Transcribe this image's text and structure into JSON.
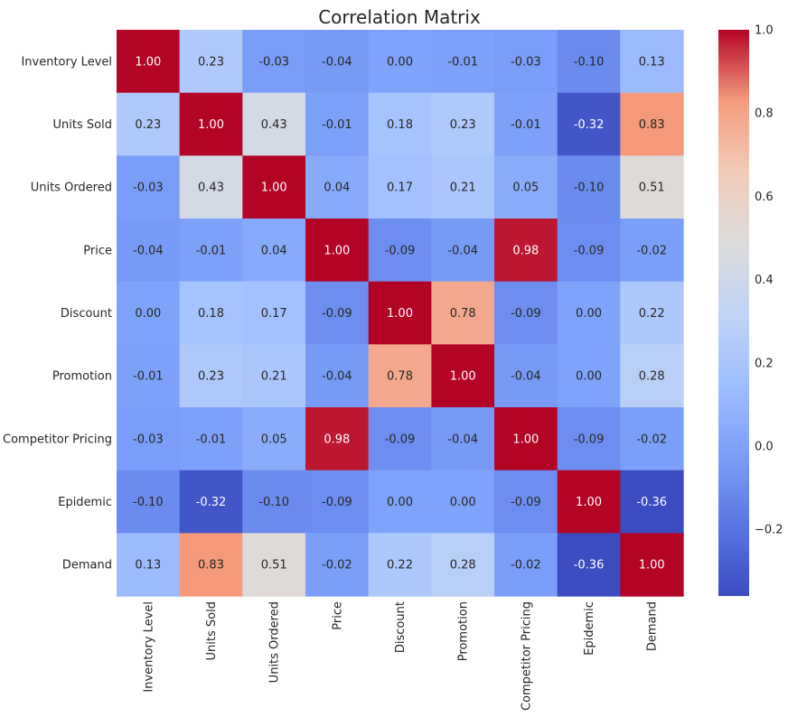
{
  "chart_data": {
    "type": "heatmap",
    "title": "Correlation Matrix",
    "xlabel": "",
    "ylabel": "",
    "colormap": "coolwarm",
    "value_format": "2 decimals",
    "color_range": [
      -0.36,
      1.0
    ],
    "rows": [
      "Inventory Level",
      "Units Sold",
      "Units Ordered",
      "Price",
      "Discount",
      "Promotion",
      "Competitor Pricing",
      "Epidemic",
      "Demand"
    ],
    "columns": [
      "Inventory Level",
      "Units Sold",
      "Units Ordered",
      "Price",
      "Discount",
      "Promotion",
      "Competitor Pricing",
      "Epidemic",
      "Demand"
    ],
    "values": [
      [
        1.0,
        0.23,
        -0.03,
        -0.04,
        -0.0,
        -0.01,
        -0.03,
        -0.1,
        0.13
      ],
      [
        0.23,
        1.0,
        0.43,
        -0.01,
        0.18,
        0.23,
        -0.01,
        -0.32,
        0.83
      ],
      [
        -0.03,
        0.43,
        1.0,
        0.04,
        0.17,
        0.21,
        0.05,
        -0.1,
        0.51
      ],
      [
        -0.04,
        -0.01,
        0.04,
        1.0,
        -0.09,
        -0.04,
        0.98,
        -0.09,
        -0.02
      ],
      [
        -0.0,
        0.18,
        0.17,
        -0.09,
        1.0,
        0.78,
        -0.09,
        -0.0,
        0.22
      ],
      [
        -0.01,
        0.23,
        0.21,
        -0.04,
        0.78,
        1.0,
        -0.04,
        0.0,
        0.28
      ],
      [
        -0.03,
        -0.01,
        0.05,
        0.98,
        -0.09,
        -0.04,
        1.0,
        -0.09,
        -0.02
      ],
      [
        -0.1,
        -0.32,
        -0.1,
        -0.09,
        -0.0,
        0.0,
        -0.09,
        1.0,
        -0.36
      ],
      [
        0.13,
        0.83,
        0.51,
        -0.02,
        0.22,
        0.28,
        -0.02,
        -0.36,
        1.0
      ]
    ],
    "colorbar": {
      "ticks": [
        -0.2,
        0.0,
        0.2,
        0.4,
        0.6,
        0.8,
        1.0
      ],
      "tick_labels": [
        "−0.2",
        "0.0",
        "0.2",
        "0.4",
        "0.6",
        "0.8",
        "1.0"
      ],
      "placement": "right"
    },
    "grid": false,
    "legend": "none"
  }
}
